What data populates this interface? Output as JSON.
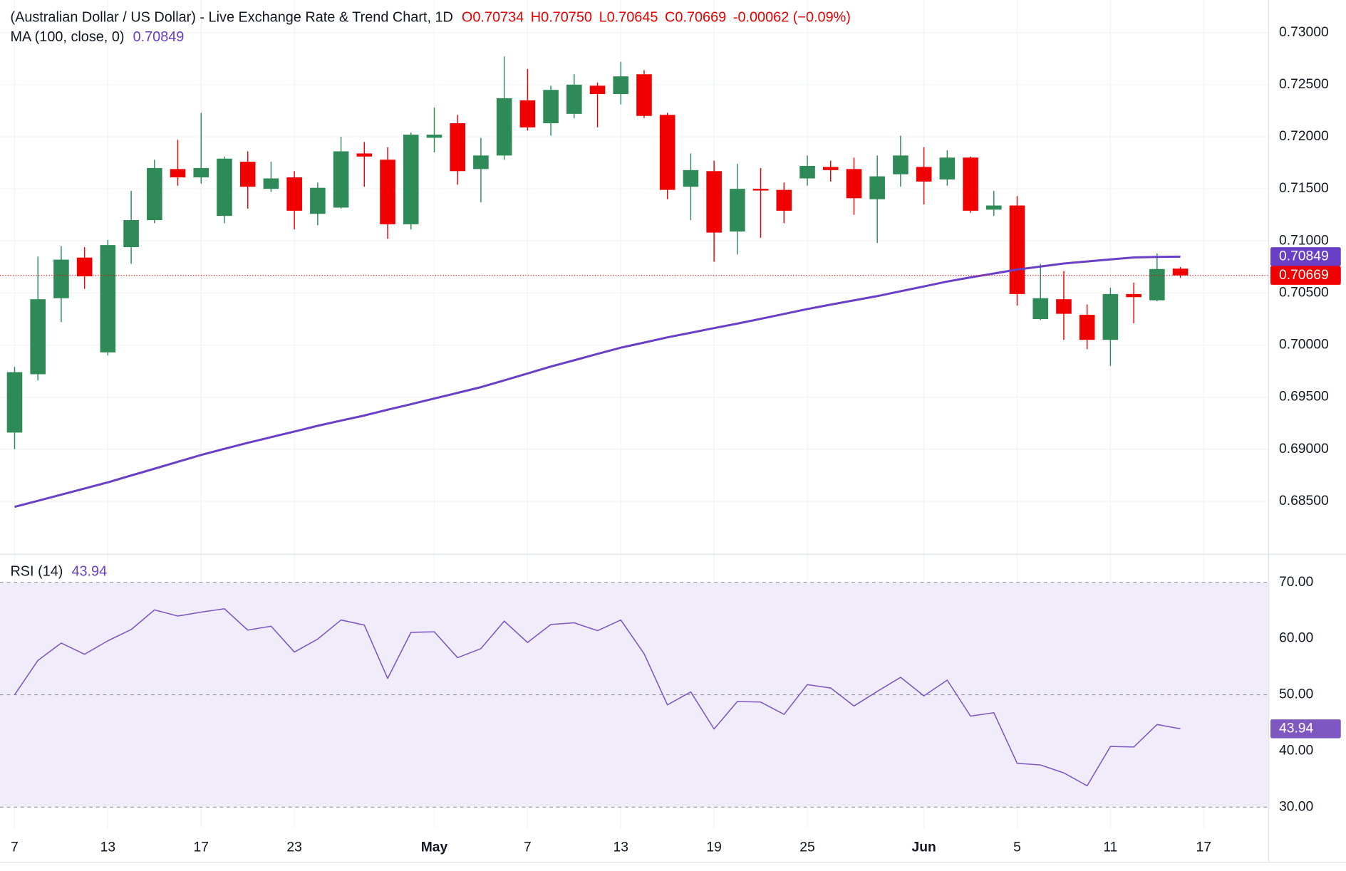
{
  "chart_data": {
    "type": "candlestick",
    "title": "(Australian Dollar / US Dollar) - Live Exchange Rate & Trend Chart, 1D",
    "legend_values": [
      "O0.70734",
      "H0.70750",
      "L0.70645",
      "C0.70669",
      "-0.00062 (−0.09%)"
    ],
    "open": [
      0.6916,
      0.6972,
      0.7045,
      0.7084,
      0.6993,
      0.7094,
      0.712,
      0.7169,
      0.7161,
      0.7124,
      0.7176,
      0.715,
      0.7161,
      0.7126,
      0.7132,
      0.7184,
      0.7178,
      0.7116,
      0.7199,
      0.7213,
      0.7169,
      0.7182,
      0.7235,
      0.7213,
      0.7222,
      0.7249,
      0.7241,
      0.726,
      0.7221,
      0.7152,
      0.7167,
      0.7109,
      0.715,
      0.7149,
      0.716,
      0.7171,
      0.7169,
      0.714,
      0.7164,
      0.7171,
      0.7159,
      0.718,
      0.713,
      0.7134,
      0.7025,
      0.7044,
      0.7029,
      0.7005,
      0.7049,
      0.7043,
      0.70734
    ],
    "high": [
      0.6979,
      0.7085,
      0.7095,
      0.7094,
      0.7101,
      0.7148,
      0.7178,
      0.7197,
      0.7223,
      0.7181,
      0.7186,
      0.7176,
      0.7167,
      0.7156,
      0.72,
      0.7195,
      0.719,
      0.7204,
      0.7228,
      0.7221,
      0.7199,
      0.7277,
      0.7265,
      0.7249,
      0.726,
      0.7252,
      0.7272,
      0.7264,
      0.7223,
      0.7184,
      0.7177,
      0.7174,
      0.717,
      0.7156,
      0.7182,
      0.7177,
      0.718,
      0.7182,
      0.7201,
      0.719,
      0.7187,
      0.7181,
      0.7148,
      0.7143,
      0.7078,
      0.7071,
      0.7039,
      0.7055,
      0.706,
      0.7088,
      0.7075
    ],
    "low": [
      0.69,
      0.6966,
      0.7022,
      0.7054,
      0.699,
      0.7078,
      0.7117,
      0.7153,
      0.7155,
      0.7117,
      0.7131,
      0.7147,
      0.7111,
      0.7115,
      0.7131,
      0.7152,
      0.7102,
      0.7111,
      0.7185,
      0.7154,
      0.7137,
      0.7178,
      0.7206,
      0.7201,
      0.7218,
      0.7209,
      0.7231,
      0.7218,
      0.714,
      0.712,
      0.708,
      0.7087,
      0.7103,
      0.7117,
      0.7153,
      0.7157,
      0.7125,
      0.7098,
      0.7152,
      0.7135,
      0.7153,
      0.7127,
      0.7124,
      0.7038,
      0.7024,
      0.7005,
      0.6996,
      0.698,
      0.7021,
      0.7042,
      0.70645
    ],
    "close": [
      0.6974,
      0.7044,
      0.7082,
      0.7066,
      0.7096,
      0.712,
      0.717,
      0.7161,
      0.717,
      0.7179,
      0.7152,
      0.716,
      0.7129,
      0.7151,
      0.7186,
      0.7181,
      0.7116,
      0.7202,
      0.7202,
      0.7167,
      0.7182,
      0.7237,
      0.7209,
      0.7245,
      0.725,
      0.7241,
      0.7258,
      0.722,
      0.7149,
      0.7168,
      0.7108,
      0.715,
      0.7149,
      0.7129,
      0.7172,
      0.7168,
      0.7141,
      0.7162,
      0.7182,
      0.7157,
      0.718,
      0.7129,
      0.7134,
      0.7049,
      0.7045,
      0.703,
      0.7005,
      0.7049,
      0.7046,
      0.7073,
      0.70669
    ],
    "up_color": "#2e8b57",
    "down_color": "#f00000",
    "xlim": [
      -0.626,
      53.79
    ],
    "xticks": [
      {
        "value": 0,
        "label": "7"
      },
      {
        "value": 4,
        "label": "13"
      },
      {
        "value": 8,
        "label": "17"
      },
      {
        "value": 12,
        "label": "23"
      },
      {
        "value": 18,
        "label": "May"
      },
      {
        "value": 22,
        "label": "7"
      },
      {
        "value": 26,
        "label": "13"
      },
      {
        "value": 30,
        "label": "19"
      },
      {
        "value": 34,
        "label": "25"
      },
      {
        "value": 39,
        "label": "Jun"
      },
      {
        "value": 43,
        "label": "5"
      },
      {
        "value": 47,
        "label": "11"
      },
      {
        "value": 51,
        "label": "17"
      }
    ],
    "ylim": [
      0.68,
      0.73313
    ],
    "yticks": [
      {
        "value": 0.685,
        "label": "0.68500"
      },
      {
        "value": 0.69,
        "label": "0.69000"
      },
      {
        "value": 0.695,
        "label": "0.69500"
      },
      {
        "value": 0.7,
        "label": "0.70000"
      },
      {
        "value": 0.705,
        "label": "0.70500"
      },
      {
        "value": 0.71,
        "label": "0.71000"
      },
      {
        "value": 0.715,
        "label": "0.71500"
      },
      {
        "value": 0.72,
        "label": "0.72000"
      },
      {
        "value": 0.725,
        "label": "0.72500"
      },
      {
        "value": 0.73,
        "label": "0.73000"
      }
    ],
    "grid": true,
    "last_label": "0.70669",
    "ma": {
      "name": "MA (100, close, 0)",
      "value_label": "0.70849",
      "color": "#6a3fc8",
      "values": [
        0.68447,
        0.68505,
        0.68564,
        0.68623,
        0.68682,
        0.68748,
        0.68813,
        0.68879,
        0.68945,
        0.69004,
        0.69061,
        0.69116,
        0.6917,
        0.69225,
        0.69275,
        0.69324,
        0.69379,
        0.69432,
        0.69487,
        0.69541,
        0.69596,
        0.69661,
        0.69727,
        0.69794,
        0.69854,
        0.69915,
        0.69975,
        0.70024,
        0.70074,
        0.70118,
        0.70163,
        0.70206,
        0.70252,
        0.70299,
        0.70346,
        0.70388,
        0.70429,
        0.7047,
        0.70517,
        0.70563,
        0.7061,
        0.7065,
        0.70687,
        0.70725,
        0.70754,
        0.70783,
        0.70803,
        0.70822,
        0.70841,
        0.70846,
        0.70849
      ]
    },
    "rsi": {
      "name": "RSI (14)",
      "value_label": "43.94",
      "color": "#7e57c2",
      "values": [
        50.0,
        56.1,
        59.2,
        57.2,
        59.6,
        61.6,
        65.1,
        64.0,
        64.7,
        65.3,
        61.5,
        62.2,
        57.6,
        59.9,
        63.3,
        62.4,
        52.9,
        61.1,
        61.2,
        56.6,
        58.2,
        63.1,
        59.3,
        62.5,
        62.8,
        61.4,
        63.3,
        57.3,
        48.2,
        50.5,
        43.9,
        48.8,
        48.7,
        46.5,
        51.8,
        51.2,
        48.0,
        50.6,
        53.1,
        49.8,
        52.6,
        46.2,
        46.8,
        37.8,
        37.5,
        36.1,
        33.8,
        40.8,
        40.7,
        44.7,
        43.94
      ],
      "ylim": [
        26.3,
        75
      ],
      "yticks": [
        {
          "value": 30,
          "label": "30.00"
        },
        {
          "value": 40,
          "label": "40.00"
        },
        {
          "value": 50,
          "label": "50.00"
        },
        {
          "value": 60,
          "label": "60.00"
        },
        {
          "value": 70,
          "label": "70.00"
        }
      ],
      "band": [
        30,
        70
      ],
      "midline": 50
    }
  }
}
